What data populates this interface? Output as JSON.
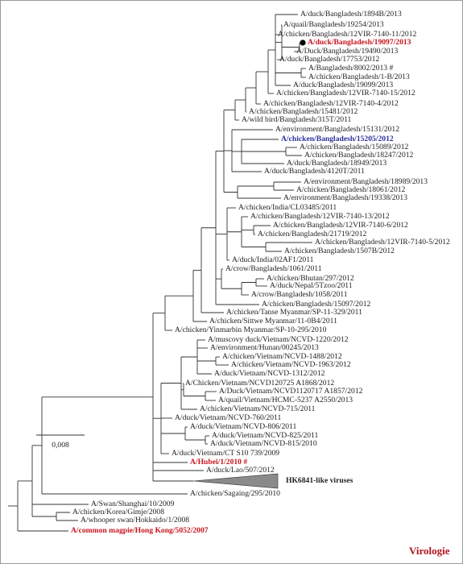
{
  "leaves": [
    {
      "label": "A/duck/Bangladesh/1894B/2013"
    },
    {
      "label": "A/quail/Bangladesh/19254/2013"
    },
    {
      "label": "A/chicken/Bangladesh/12VIR-7140-11/2012"
    },
    {
      "label": "A/duck/Bangladesh/19097/2013",
      "color": "#c8141e",
      "bold": true
    },
    {
      "label": "A/Duck/Bangladesh/19490/2013"
    },
    {
      "label": "A/duck/Bangladesh/17753/2012"
    },
    {
      "label": "A/Bangladesh/8002/2013 #"
    },
    {
      "label": "A/chicken/Bangladesh/1-B/2013"
    },
    {
      "label": "A/duck/Bangladesh/19099/2013"
    },
    {
      "label": "A/chicken/Bangladesh/12VIR-7140-15/2012"
    },
    {
      "label": "A/chicken/Bangladesh/12VIR-7140-4/2012"
    },
    {
      "label": "A/chicken/Bangladesh/15481/2012"
    },
    {
      "label": "A/wild bird/Bangladesh/315T/2011"
    },
    {
      "label": "A/environment/Bangladesh/15131/2012"
    },
    {
      "label": "A/chicken/Bangladesh/15205/2012",
      "color": "#2e2e9c",
      "bold": true
    },
    {
      "label": "A/chicken/Bangladesh/15089/2012"
    },
    {
      "label": "A/chicken/Bangladesh/18247/2012"
    },
    {
      "label": "A/duck/Bangladesh/18949/2013"
    },
    {
      "label": "A/duck/Bangladesh/4120T/2011"
    },
    {
      "label": "A/environment/Bangladesh/18989/2013"
    },
    {
      "label": "A/chicken/Bangladesh/18061/2012"
    },
    {
      "label": "A/environment/Bangladesh/19338/2013"
    },
    {
      "label": "A/chicken/India/CL03485/2011"
    },
    {
      "label": "A/chicken/Bangladesh/12VIR-7140-13/2012"
    },
    {
      "label": "A/chicken/Bangladesh/12VIR-7140-6/2012"
    },
    {
      "label": "A/chicken/Bangladesh/21719/2012"
    },
    {
      "label": "A/chicken/Bangladesh/12VIR-7140-5/2012"
    },
    {
      "label": "A/chicken/Bangladesh/1507B/2012"
    },
    {
      "label": "A/duck/India/02AF1/2011"
    },
    {
      "label": "A/crow/Bangladesh/1061/2011"
    },
    {
      "label": "A/chicken/Bhutan/297/2012"
    },
    {
      "label": "A/duck/Nepal/5Tzoo/2011"
    },
    {
      "label": "A/crow/Bangladesh/1058/2011"
    },
    {
      "label": "A/chicken/Bangladesh/15097/2012"
    },
    {
      "label": "A/chicken/Tanse Myanmar/SP-11-329/2011"
    },
    {
      "label": "A/chicken/Sittwe Myanmar/11-0B4/2011"
    },
    {
      "label": "A/chicken/Yinmarbin Myanmar/SP-10-295/2010"
    },
    {
      "label": "A/muscovy duck/Vietnam/NCVD-1220/2012"
    },
    {
      "label": "A/environment/Hunan/00245/2013"
    },
    {
      "label": "A/chicken/Vietnam/NCVD-1488/2012"
    },
    {
      "label": "A/chicken/Vietnam/NCVD-1963/2012"
    },
    {
      "label": "A/duck/Vietnam/NCVD-1312/2012"
    },
    {
      "label": "A/Chicken/Vietnam/NCVD120725 A1868/2012"
    },
    {
      "label": "A/Duck/Vietnam/NCVD1120717 A1857/2012"
    },
    {
      "label": "A/quail/Vietnam/HCMC-5237 A2550/2013"
    },
    {
      "label": "A/chicken/Vietnam/NCVD-715/2011"
    },
    {
      "label": "A/duck/Vietnam/NCVD-760/2011"
    },
    {
      "label": "A/duck/Vietnam/NCVD-806/2011"
    },
    {
      "label": "A/duck/Vietnam/NCVD-825/2011"
    },
    {
      "label": "A/duck/Vietnam/NCVD-815/2010"
    },
    {
      "label": "A/duck/Vietnam/CT S10 739/2009"
    },
    {
      "label": "A/Hubei/1/2010 #",
      "color": "#c8141e",
      "bold": true
    },
    {
      "label": "A/duck/Lao/507/2012"
    },
    {
      "label": "HK6841-like viruses",
      "bold": true
    },
    {
      "label": "A/chicken/Sagaing/295/2010"
    },
    {
      "label": "A/Swan/Shanghai/10/2009"
    },
    {
      "label": "A/chicken/Korea/Gimje/2008"
    },
    {
      "label": "A/whooper swan/Hokkaido/1/2008"
    },
    {
      "label": "A/common magpie/Hong Kong/5052/2007",
      "color": "#c8141e",
      "bold": true
    }
  ],
  "scale_bar": "0,008",
  "logo": "Virologie"
}
